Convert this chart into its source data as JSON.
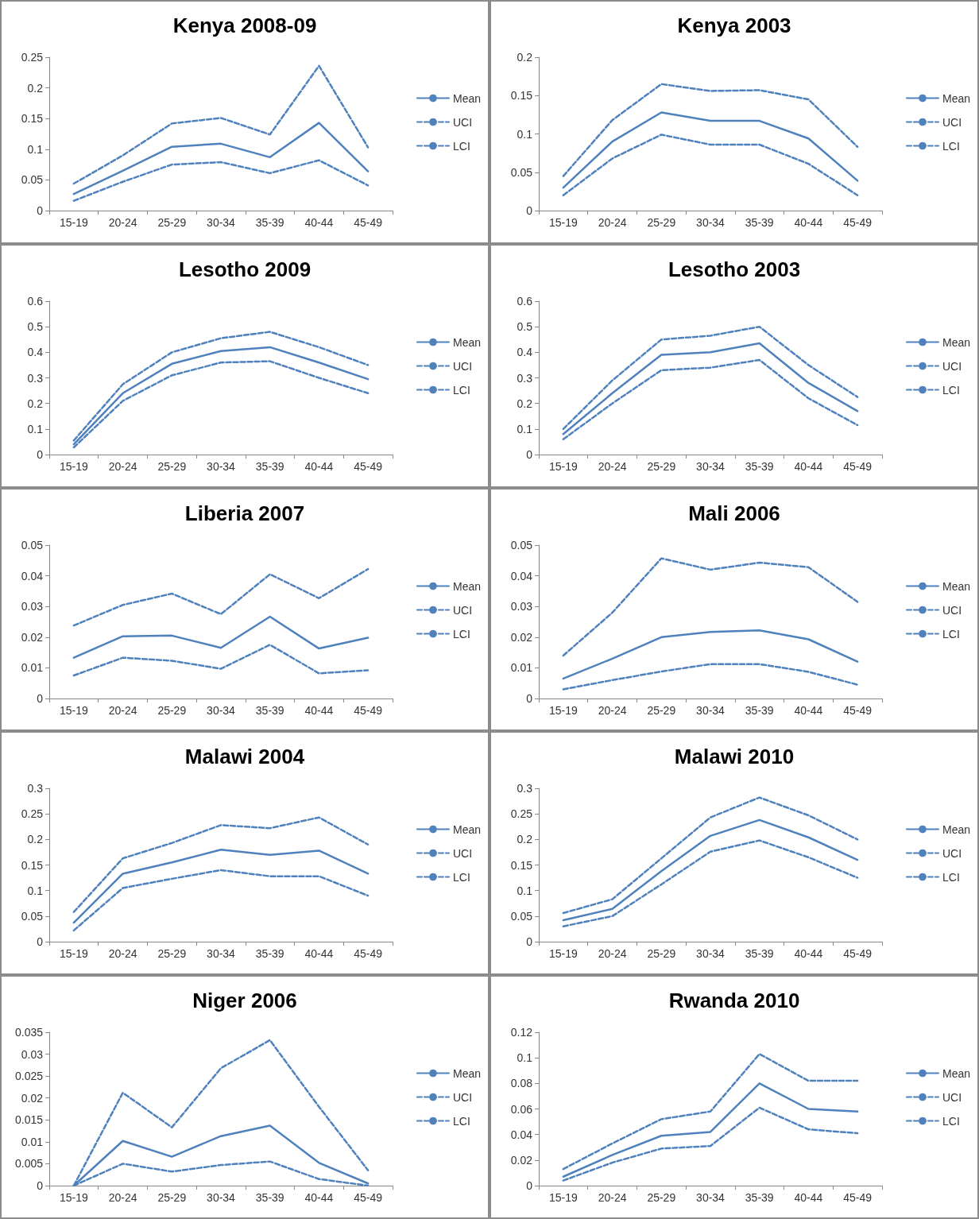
{
  "chart_data": [
    {
      "type": "line",
      "title": "Kenya 2008-09",
      "categories": [
        "15-19",
        "20-24",
        "25-29",
        "30-34",
        "35-39",
        "40-44",
        "45-49"
      ],
      "ylim": [
        0,
        0.25
      ],
      "yticks": [
        0,
        0.05,
        0.1,
        0.15,
        0.2,
        0.25
      ],
      "grid": false,
      "legend": "right",
      "marker": "none",
      "series": [
        {
          "name": "Mean",
          "color": "#4f81bd",
          "line_style": "solid",
          "values": [
            0.027,
            0.065,
            0.104,
            0.109,
            0.087,
            0.143,
            0.064
          ]
        },
        {
          "name": "UCI",
          "color": "#4f81bd",
          "line_style": "dashed",
          "values": [
            0.044,
            0.09,
            0.142,
            0.151,
            0.124,
            0.236,
            0.103
          ]
        },
        {
          "name": "LCI",
          "color": "#4f81bd",
          "line_style": "dashed",
          "values": [
            0.016,
            0.047,
            0.075,
            0.079,
            0.061,
            0.082,
            0.041
          ]
        }
      ]
    },
    {
      "type": "line",
      "title": "Kenya 2003",
      "categories": [
        "15-19",
        "20-24",
        "25-29",
        "30-34",
        "35-39",
        "40-44",
        "45-49"
      ],
      "ylim": [
        0,
        0.2
      ],
      "yticks": [
        0,
        0.05,
        0.1,
        0.15,
        0.2
      ],
      "grid": false,
      "legend": "right",
      "marker": "none",
      "series": [
        {
          "name": "Mean",
          "color": "#4f81bd",
          "line_style": "solid",
          "values": [
            0.03,
            0.09,
            0.128,
            0.117,
            0.117,
            0.094,
            0.039
          ]
        },
        {
          "name": "UCI",
          "color": "#4f81bd",
          "line_style": "dashed",
          "values": [
            0.045,
            0.118,
            0.165,
            0.156,
            0.157,
            0.145,
            0.083
          ]
        },
        {
          "name": "LCI",
          "color": "#4f81bd",
          "line_style": "dashed",
          "values": [
            0.02,
            0.068,
            0.099,
            0.086,
            0.086,
            0.061,
            0.02
          ]
        }
      ]
    },
    {
      "type": "line",
      "title": "Lesotho 2009",
      "categories": [
        "15-19",
        "20-24",
        "25-29",
        "30-34",
        "35-39",
        "40-44",
        "45-49"
      ],
      "ylim": [
        0,
        0.6
      ],
      "yticks": [
        0,
        0.1,
        0.2,
        0.3,
        0.4,
        0.5,
        0.6
      ],
      "grid": false,
      "legend": "right",
      "marker": "none",
      "series": [
        {
          "name": "Mean",
          "color": "#4f81bd",
          "line_style": "solid",
          "values": [
            0.04,
            0.24,
            0.355,
            0.405,
            0.42,
            0.36,
            0.295
          ]
        },
        {
          "name": "UCI",
          "color": "#4f81bd",
          "line_style": "dashed",
          "values": [
            0.055,
            0.275,
            0.4,
            0.455,
            0.48,
            0.42,
            0.35
          ]
        },
        {
          "name": "LCI",
          "color": "#4f81bd",
          "line_style": "dashed",
          "values": [
            0.028,
            0.21,
            0.31,
            0.36,
            0.365,
            0.3,
            0.24
          ]
        }
      ]
    },
    {
      "type": "line",
      "title": "Lesotho 2003",
      "categories": [
        "15-19",
        "20-24",
        "25-29",
        "30-34",
        "35-39",
        "40-44",
        "45-49"
      ],
      "ylim": [
        0,
        0.6
      ],
      "yticks": [
        0,
        0.1,
        0.2,
        0.3,
        0.4,
        0.5,
        0.6
      ],
      "grid": false,
      "legend": "right",
      "marker": "none",
      "series": [
        {
          "name": "Mean",
          "color": "#4f81bd",
          "line_style": "solid",
          "values": [
            0.08,
            0.24,
            0.39,
            0.4,
            0.435,
            0.28,
            0.17
          ]
        },
        {
          "name": "UCI",
          "color": "#4f81bd",
          "line_style": "dashed",
          "values": [
            0.1,
            0.29,
            0.45,
            0.465,
            0.5,
            0.35,
            0.225
          ]
        },
        {
          "name": "LCI",
          "color": "#4f81bd",
          "line_style": "dashed",
          "values": [
            0.06,
            0.2,
            0.33,
            0.34,
            0.37,
            0.22,
            0.115
          ]
        }
      ]
    },
    {
      "type": "line",
      "title": "Liberia 2007",
      "categories": [
        "15-19",
        "20-24",
        "25-29",
        "30-34",
        "35-39",
        "40-44",
        "45-49"
      ],
      "ylim": [
        0,
        0.05
      ],
      "yticks": [
        0,
        0.01,
        0.02,
        0.03,
        0.04,
        0.05
      ],
      "grid": false,
      "legend": "right",
      "marker": "none",
      "series": [
        {
          "name": "Mean",
          "color": "#4f81bd",
          "line_style": "solid",
          "values": [
            0.0133,
            0.0203,
            0.0205,
            0.0165,
            0.0267,
            0.0163,
            0.0198
          ]
        },
        {
          "name": "UCI",
          "color": "#4f81bd",
          "line_style": "dashed",
          "values": [
            0.0238,
            0.0305,
            0.0342,
            0.0275,
            0.0405,
            0.0327,
            0.0422
          ]
        },
        {
          "name": "LCI",
          "color": "#4f81bd",
          "line_style": "dashed",
          "values": [
            0.0075,
            0.0133,
            0.0123,
            0.0097,
            0.0175,
            0.0082,
            0.0092
          ]
        }
      ]
    },
    {
      "type": "line",
      "title": "Mali 2006",
      "categories": [
        "15-19",
        "20-24",
        "25-29",
        "30-34",
        "35-39",
        "40-44",
        "45-49"
      ],
      "ylim": [
        0,
        0.05
      ],
      "yticks": [
        0,
        0.01,
        0.02,
        0.03,
        0.04,
        0.05
      ],
      "grid": false,
      "legend": "right",
      "marker": "none",
      "series": [
        {
          "name": "Mean",
          "color": "#4f81bd",
          "line_style": "solid",
          "values": [
            0.0065,
            0.013,
            0.02,
            0.0217,
            0.0222,
            0.0193,
            0.012
          ]
        },
        {
          "name": "UCI",
          "color": "#4f81bd",
          "line_style": "dashed",
          "values": [
            0.014,
            0.028,
            0.0457,
            0.042,
            0.0443,
            0.0428,
            0.0315
          ]
        },
        {
          "name": "LCI",
          "color": "#4f81bd",
          "line_style": "dashed",
          "values": [
            0.003,
            0.006,
            0.0088,
            0.0112,
            0.0112,
            0.0087,
            0.0045
          ]
        }
      ]
    },
    {
      "type": "line",
      "title": "Malawi 2004",
      "categories": [
        "15-19",
        "20-24",
        "25-29",
        "30-34",
        "35-39",
        "40-44",
        "45-49"
      ],
      "ylim": [
        0,
        0.3
      ],
      "yticks": [
        0,
        0.05,
        0.1,
        0.15,
        0.2,
        0.25,
        0.3
      ],
      "grid": false,
      "legend": "right",
      "marker": "none",
      "series": [
        {
          "name": "Mean",
          "color": "#4f81bd",
          "line_style": "solid",
          "values": [
            0.037,
            0.133,
            0.155,
            0.18,
            0.17,
            0.178,
            0.133
          ]
        },
        {
          "name": "UCI",
          "color": "#4f81bd",
          "line_style": "dashed",
          "values": [
            0.058,
            0.163,
            0.193,
            0.228,
            0.222,
            0.243,
            0.19
          ]
        },
        {
          "name": "LCI",
          "color": "#4f81bd",
          "line_style": "dashed",
          "values": [
            0.022,
            0.105,
            0.123,
            0.14,
            0.128,
            0.128,
            0.09
          ]
        }
      ]
    },
    {
      "type": "line",
      "title": "Malawi 2010",
      "categories": [
        "15-19",
        "20-24",
        "25-29",
        "30-34",
        "35-39",
        "40-44",
        "45-49"
      ],
      "ylim": [
        0,
        0.3
      ],
      "yticks": [
        0,
        0.05,
        0.1,
        0.15,
        0.2,
        0.25,
        0.3
      ],
      "grid": false,
      "legend": "right",
      "marker": "none",
      "series": [
        {
          "name": "Mean",
          "color": "#4f81bd",
          "line_style": "solid",
          "values": [
            0.042,
            0.064,
            0.138,
            0.207,
            0.238,
            0.204,
            0.16
          ]
        },
        {
          "name": "UCI",
          "color": "#4f81bd",
          "line_style": "dashed",
          "values": [
            0.056,
            0.083,
            0.163,
            0.243,
            0.282,
            0.247,
            0.2
          ]
        },
        {
          "name": "LCI",
          "color": "#4f81bd",
          "line_style": "dashed",
          "values": [
            0.03,
            0.05,
            0.112,
            0.176,
            0.198,
            0.165,
            0.125
          ]
        }
      ]
    },
    {
      "type": "line",
      "title": "Niger 2006",
      "categories": [
        "15-19",
        "20-24",
        "25-29",
        "30-34",
        "35-39",
        "40-44",
        "45-49"
      ],
      "ylim": [
        0,
        0.035
      ],
      "yticks": [
        0,
        0.005,
        0.01,
        0.015,
        0.02,
        0.025,
        0.03,
        0.035
      ],
      "grid": false,
      "legend": "right",
      "marker": "none",
      "series": [
        {
          "name": "Mean",
          "color": "#4f81bd",
          "line_style": "solid",
          "values": [
            0,
            0.0102,
            0.0066,
            0.0113,
            0.0137,
            0.0052,
            0.0005
          ]
        },
        {
          "name": "UCI",
          "color": "#4f81bd",
          "line_style": "dashed",
          "values": [
            0,
            0.0212,
            0.0133,
            0.0268,
            0.0332,
            0.018,
            0.0035
          ]
        },
        {
          "name": "LCI",
          "color": "#4f81bd",
          "line_style": "dashed",
          "values": [
            0,
            0.005,
            0.0032,
            0.0047,
            0.0055,
            0.0015,
            0
          ]
        }
      ]
    },
    {
      "type": "line",
      "title": "Rwanda 2010",
      "categories": [
        "15-19",
        "20-24",
        "25-29",
        "30-34",
        "35-39",
        "40-44",
        "45-49"
      ],
      "ylim": [
        0,
        0.12
      ],
      "yticks": [
        0,
        0.02,
        0.04,
        0.06,
        0.08,
        0.1,
        0.12
      ],
      "grid": false,
      "legend": "right",
      "marker": "none",
      "series": [
        {
          "name": "Mean",
          "color": "#4f81bd",
          "line_style": "solid",
          "values": [
            0.007,
            0.024,
            0.039,
            0.042,
            0.08,
            0.06,
            0.058
          ]
        },
        {
          "name": "UCI",
          "color": "#4f81bd",
          "line_style": "dashed",
          "values": [
            0.013,
            0.033,
            0.052,
            0.058,
            0.103,
            0.082,
            0.082
          ]
        },
        {
          "name": "LCI",
          "color": "#4f81bd",
          "line_style": "dashed",
          "values": [
            0.004,
            0.018,
            0.029,
            0.031,
            0.061,
            0.044,
            0.041
          ]
        }
      ]
    }
  ]
}
